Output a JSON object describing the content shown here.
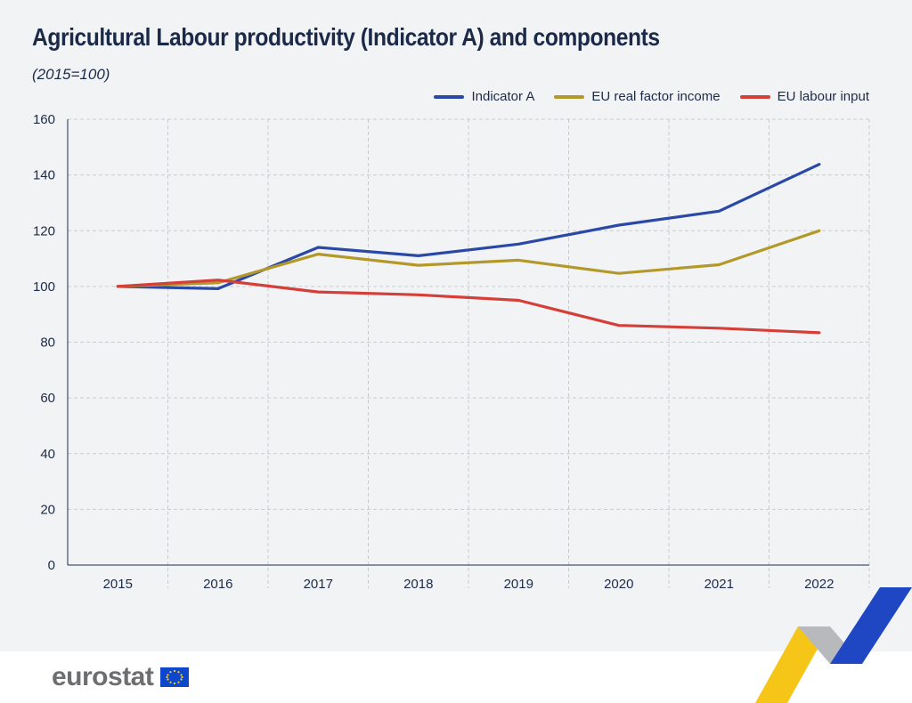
{
  "header": {
    "title": "Agricultural Labour productivity (Indicator A) and components",
    "subtitle": "(2015=100)"
  },
  "footer": {
    "logo_text": "eurostat"
  },
  "chart_data": {
    "type": "line",
    "title": "Agricultural Labour productivity (Indicator A) and components",
    "subtitle": "(2015=100)",
    "xlabel": "",
    "ylabel": "",
    "x": [
      "2015",
      "2016",
      "2017",
      "2018",
      "2019",
      "2020",
      "2021",
      "2022"
    ],
    "ylim": [
      0,
      160
    ],
    "yticks": [
      0,
      20,
      40,
      60,
      80,
      100,
      120,
      140,
      160
    ],
    "grid": true,
    "legend_position": "top-right",
    "series": [
      {
        "name": "Indicator A",
        "color": "#2a48a6",
        "values": [
          100,
          99.2,
          114,
          111,
          115.2,
          122,
          127,
          143.8
        ]
      },
      {
        "name": "EU real factor income",
        "color": "#b3982a",
        "values": [
          100,
          101.3,
          111.6,
          107.6,
          109.4,
          104.7,
          107.8,
          120
        ]
      },
      {
        "name": "EU labour input",
        "color": "#d43f3a",
        "values": [
          100,
          102.3,
          98,
          97,
          95,
          86,
          85,
          83.4
        ]
      }
    ]
  }
}
